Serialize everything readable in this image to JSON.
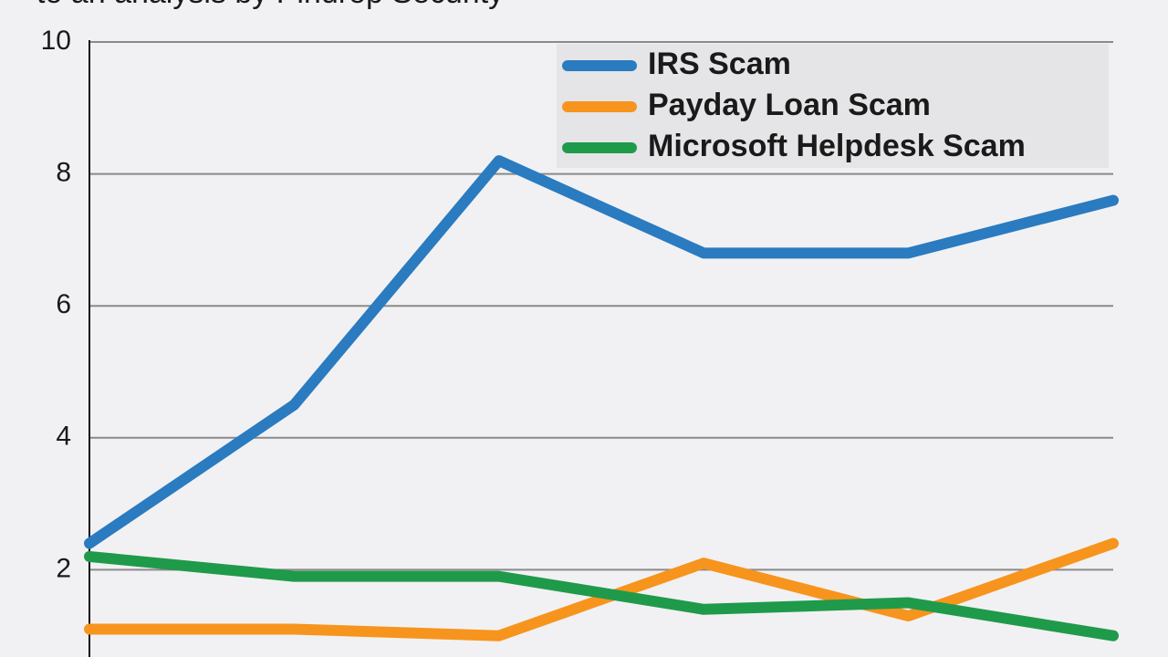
{
  "chart_data": {
    "type": "line",
    "subtitle": "to an analysis by Pindrop Security",
    "categories": [
      null,
      null,
      null,
      null,
      null,
      null
    ],
    "series": [
      {
        "name": "IRS Scam",
        "color": "#2a7bc0",
        "values": [
          2.4,
          4.5,
          8.2,
          6.8,
          6.8,
          7.6
        ]
      },
      {
        "name": "Payday Loan Scam",
        "color": "#f7941d",
        "values": [
          1.1,
          1.1,
          1.0,
          2.1,
          1.3,
          2.4
        ]
      },
      {
        "name": "Microsoft Helpdesk Scam",
        "color": "#1f9a4a",
        "values": [
          2.2,
          1.9,
          1.9,
          1.4,
          1.5,
          1.0
        ]
      }
    ],
    "ylim": [
      0,
      10
    ],
    "yticks": [
      2,
      4,
      6,
      8,
      10
    ],
    "grid": true,
    "legend": "upper-right"
  }
}
